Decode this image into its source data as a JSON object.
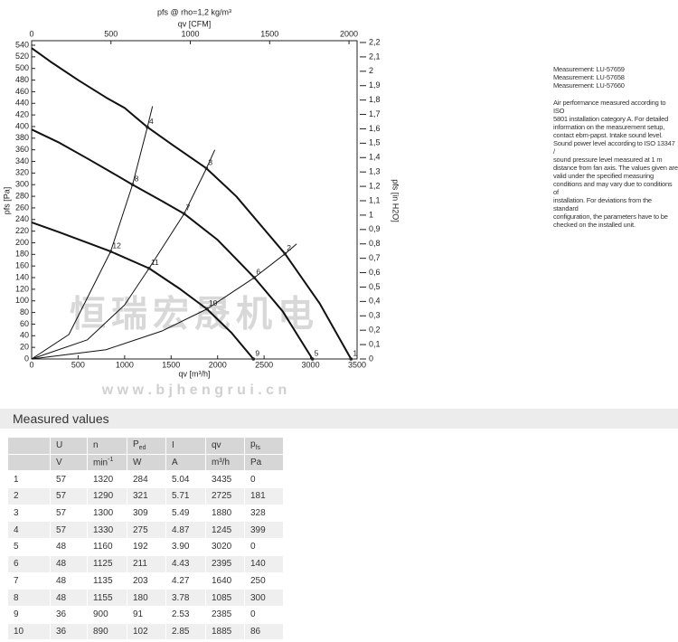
{
  "chart_data": {
    "type": "line",
    "title": "pfs @ rho=1,2 kg/m³",
    "xlabel": "qv [m³/h]",
    "x2label": "qv [CFM]",
    "ylabel": "pfs [Pa]",
    "y2label": "pfs [in H2O]",
    "xlim": [
      0,
      3500
    ],
    "xticks": [
      0,
      500,
      1000,
      1500,
      2000,
      2500,
      3000,
      3500
    ],
    "x2lim": [
      0,
      2051
    ],
    "x2ticks": [
      0,
      500,
      1000,
      1500,
      2000
    ],
    "ylim": [
      0,
      540
    ],
    "yticks": [
      0,
      20,
      40,
      60,
      80,
      100,
      120,
      140,
      160,
      180,
      200,
      220,
      240,
      260,
      280,
      300,
      320,
      340,
      360,
      380,
      400,
      420,
      440,
      460,
      480,
      500,
      520,
      540
    ],
    "y2lim": [
      0,
      2.2
    ],
    "y2ticks": [
      0,
      {
        "value": 0.1,
        "label": "0,1"
      },
      {
        "value": 0.2,
        "label": "0,2"
      },
      {
        "value": 0.3,
        "label": "0,3"
      },
      {
        "value": 0.4,
        "label": "0,4"
      },
      {
        "value": 0.5,
        "label": "0,5"
      },
      {
        "value": 0.6,
        "label": "0,6"
      },
      {
        "value": 0.7,
        "label": "0,7"
      },
      {
        "value": 0.8,
        "label": "0,8"
      },
      {
        "value": 0.9,
        "label": "0,9"
      },
      1,
      {
        "value": 1.1,
        "label": "1,1"
      },
      {
        "value": 1.2,
        "label": "1,2"
      },
      {
        "value": 1.3,
        "label": "1,3"
      },
      {
        "value": 1.4,
        "label": "1,4"
      },
      {
        "value": 1.5,
        "label": "1,5"
      },
      {
        "value": 1.6,
        "label": "1,6"
      },
      {
        "value": 1.7,
        "label": "1,7"
      },
      {
        "value": 1.8,
        "label": "1,8"
      },
      {
        "value": 1.9,
        "label": "1,9"
      },
      2,
      {
        "value": 2.1,
        "label": "2,1"
      },
      {
        "value": 2.2,
        "label": "2,2"
      }
    ],
    "grid": false,
    "series": [
      {
        "color": "#111111",
        "width": 2,
        "x": [
          0,
          200,
          500,
          800,
          1000,
          1245,
          1500,
          1880,
          2200,
          2725,
          3100,
          3435
        ],
        "values": [
          535,
          512,
          480,
          450,
          432,
          399,
          370,
          328,
          280,
          181,
          95,
          0
        ]
      },
      {
        "color": "#111111",
        "width": 2,
        "x": [
          0,
          300,
          600,
          850,
          1085,
          1400,
          1640,
          2000,
          2395,
          2700,
          3020
        ],
        "values": [
          395,
          372,
          345,
          322,
          300,
          272,
          250,
          205,
          140,
          82,
          0
        ]
      },
      {
        "color": "#111111",
        "width": 2,
        "x": [
          0,
          300,
          600,
          850,
          1263,
          1600,
          1885,
          2150,
          2385
        ],
        "values": [
          235,
          218,
          200,
          185,
          156,
          120,
          86,
          45,
          0
        ]
      },
      {
        "color": "#111111",
        "width": 1,
        "x": [
          0,
          400,
          850,
          1085,
          1245,
          1300
        ],
        "values": [
          0,
          42,
          185,
          300,
          399,
          435
        ]
      },
      {
        "color": "#111111",
        "width": 1,
        "x": [
          0,
          600,
          1000,
          1263,
          1640,
          1880,
          1970
        ],
        "values": [
          0,
          33,
          93,
          156,
          250,
          328,
          360
        ]
      },
      {
        "color": "#111111",
        "width": 1,
        "x": [
          0,
          800,
          1400,
          1885,
          2395,
          2725,
          2850
        ],
        "values": [
          0,
          16,
          48,
          86,
          140,
          181,
          198
        ]
      }
    ],
    "annotations": [
      {
        "text": "1",
        "x": 3435,
        "y": 0
      },
      {
        "text": "2",
        "x": 2725,
        "y": 181
      },
      {
        "text": "3",
        "x": 1880,
        "y": 328
      },
      {
        "text": "4",
        "x": 1245,
        "y": 399
      },
      {
        "text": "5",
        "x": 3020,
        "y": 0
      },
      {
        "text": "6",
        "x": 2395,
        "y": 140
      },
      {
        "text": "7",
        "x": 1640,
        "y": 250
      },
      {
        "text": "8",
        "x": 1085,
        "y": 300
      },
      {
        "text": "9",
        "x": 2385,
        "y": 0
      },
      {
        "text": "10",
        "x": 1885,
        "y": 86
      },
      {
        "text": "11",
        "x": 1263,
        "y": 156
      },
      {
        "text": "12",
        "x": 850,
        "y": 185
      }
    ],
    "watermark": [
      "恒瑞宏晟机电",
      "w w w . b j h e n g r u i . c n"
    ]
  },
  "notes": {
    "measurements": [
      "Measurement: LU-57659",
      "Measurement: LU-57658",
      "Measurement: LU-57660"
    ],
    "paragraph": [
      "Air performance measured according to ISO",
      "5801 installation category A. For detailed",
      "information on the measurement setup,",
      "contact ebm-papst. Intake sound level.",
      "Sound power level according to ISO 13347 /",
      "sound pressure level measured at 1 m",
      "distance from fan axis. The values given are",
      "valid under the specified measuring",
      "conditions and may vary due to conditions of",
      "installation. For deviations from the standard",
      "configuration, the parameters have to be",
      "checked on the installed unit."
    ]
  },
  "table": {
    "title": "Measured values",
    "columns": [
      {
        "symbol": "U",
        "unit": "V"
      },
      {
        "symbol": "n",
        "unit": "min",
        "unit_sup": "-1"
      },
      {
        "symbol": "P",
        "symbol_sub": "ed",
        "unit": "W"
      },
      {
        "symbol": "I",
        "unit": "A"
      },
      {
        "symbol": "qv",
        "unit": "m³/h"
      },
      {
        "symbol": "p",
        "symbol_sub": "fs",
        "unit": "Pa"
      }
    ],
    "rows": [
      [
        "1",
        "57",
        "1320",
        "284",
        "5.04",
        "3435",
        "0"
      ],
      [
        "2",
        "57",
        "1290",
        "321",
        "5.71",
        "2725",
        "181"
      ],
      [
        "3",
        "57",
        "1300",
        "309",
        "5.49",
        "1880",
        "328"
      ],
      [
        "4",
        "57",
        "1330",
        "275",
        "4.87",
        "1245",
        "399"
      ],
      [
        "5",
        "48",
        "1160",
        "192",
        "3.90",
        "3020",
        "0"
      ],
      [
        "6",
        "48",
        "1125",
        "211",
        "4.43",
        "2395",
        "140"
      ],
      [
        "7",
        "48",
        "1135",
        "203",
        "4.27",
        "1640",
        "250"
      ],
      [
        "8",
        "48",
        "1155",
        "180",
        "3.78",
        "1085",
        "300"
      ],
      [
        "9",
        "36",
        "900",
        "91",
        "2.53",
        "2385",
        "0"
      ],
      [
        "10",
        "36",
        "890",
        "102",
        "2.85",
        "1885",
        "86"
      ]
    ]
  }
}
